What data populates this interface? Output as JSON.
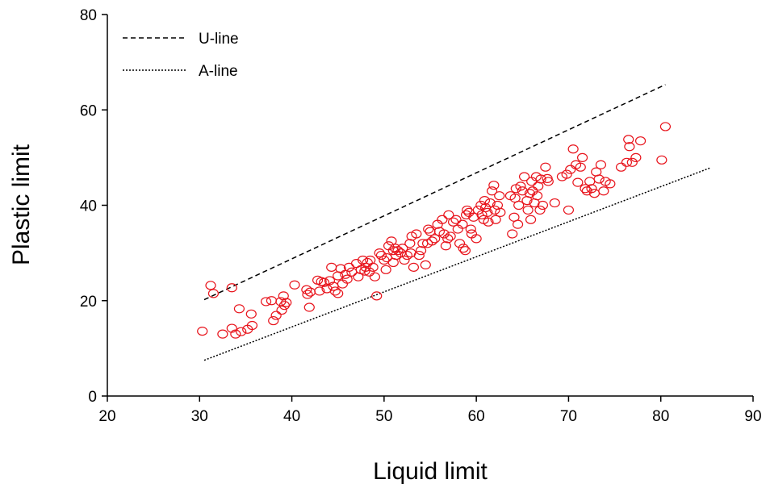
{
  "chart_data": {
    "type": "scatter",
    "xlabel": "Liquid limit",
    "ylabel": "Plastic limit",
    "xlim": [
      20,
      90
    ],
    "ylim": [
      0,
      80
    ],
    "xticks": [
      "20",
      "30",
      "40",
      "50",
      "60",
      "70",
      "80",
      "90"
    ],
    "yticks": [
      "0",
      "20",
      "40",
      "60",
      "80"
    ],
    "grid": false,
    "legend_position": "top-left",
    "lines": [
      {
        "name": "U-line",
        "style": "dashed",
        "x": [
          30.5,
          80.5
        ],
        "y": [
          20.2,
          65.3
        ],
        "color": "#000000"
      },
      {
        "name": "A-line",
        "style": "dotted",
        "x": [
          30.5,
          85.3
        ],
        "y": [
          7.5,
          47.8
        ],
        "color": "#000000"
      }
    ],
    "series": [
      {
        "marker": "open-circle",
        "color": "#e8141c",
        "points": [
          [
            30.3,
            13.6
          ],
          [
            31.2,
            23.2
          ],
          [
            31.5,
            21.5
          ],
          [
            32.5,
            13.0
          ],
          [
            33.5,
            22.7
          ],
          [
            33.5,
            14.2
          ],
          [
            33.9,
            13.0
          ],
          [
            34.3,
            18.3
          ],
          [
            34.5,
            13.5
          ],
          [
            35.2,
            14.0
          ],
          [
            35.6,
            17.2
          ],
          [
            35.7,
            14.8
          ],
          [
            37.2,
            19.8
          ],
          [
            38.0,
            15.8
          ],
          [
            38.3,
            16.9
          ],
          [
            38.8,
            19.8
          ],
          [
            38.9,
            18.0
          ],
          [
            39.1,
            21.0
          ],
          [
            39.2,
            19.0
          ],
          [
            39.4,
            19.6
          ],
          [
            40.3,
            23.3
          ],
          [
            41.6,
            22.3
          ],
          [
            41.7,
            21.3
          ],
          [
            41.9,
            18.6
          ],
          [
            42.8,
            24.3
          ],
          [
            43.0,
            22.0
          ],
          [
            43.2,
            24.0
          ],
          [
            43.5,
            23.8
          ],
          [
            43.8,
            22.5
          ],
          [
            44.1,
            24.2
          ],
          [
            44.3,
            27.0
          ],
          [
            44.5,
            23.0
          ],
          [
            44.7,
            22.0
          ],
          [
            45.0,
            25.2
          ],
          [
            45.0,
            21.5
          ],
          [
            45.3,
            26.7
          ],
          [
            45.5,
            23.5
          ],
          [
            45.8,
            25.5
          ],
          [
            46.2,
            27.0
          ],
          [
            46.5,
            26.0
          ],
          [
            47.0,
            27.8
          ],
          [
            47.2,
            25.0
          ],
          [
            47.5,
            26.5
          ],
          [
            47.7,
            28.5
          ],
          [
            47.9,
            26.2
          ],
          [
            48.0,
            27.0
          ],
          [
            48.2,
            28.0
          ],
          [
            48.4,
            26.0
          ],
          [
            48.5,
            28.5
          ],
          [
            48.8,
            27.0
          ],
          [
            49.0,
            25.0
          ],
          [
            49.2,
            21.0
          ],
          [
            49.5,
            30.0
          ],
          [
            49.7,
            29.5
          ],
          [
            50.0,
            28.5
          ],
          [
            50.3,
            29.0
          ],
          [
            50.5,
            31.5
          ],
          [
            50.8,
            32.5
          ],
          [
            51.0,
            30.5
          ],
          [
            51.0,
            28.0
          ],
          [
            51.2,
            31.0
          ],
          [
            51.3,
            29.5
          ],
          [
            51.5,
            30.5
          ],
          [
            51.8,
            30.0
          ],
          [
            52.0,
            31.0
          ],
          [
            52.2,
            28.5
          ],
          [
            52.5,
            29.5
          ],
          [
            52.8,
            32.0
          ],
          [
            53.0,
            33.5
          ],
          [
            53.2,
            27.0
          ],
          [
            53.5,
            34.0
          ],
          [
            53.8,
            29.5
          ],
          [
            54.0,
            30.5
          ],
          [
            54.2,
            32.0
          ],
          [
            54.5,
            27.5
          ],
          [
            54.7,
            32.0
          ],
          [
            54.8,
            35.0
          ],
          [
            55.0,
            34.5
          ],
          [
            55.2,
            32.5
          ],
          [
            55.5,
            33.0
          ],
          [
            55.8,
            36.0
          ],
          [
            56.0,
            34.5
          ],
          [
            56.3,
            37.0
          ],
          [
            56.5,
            34.0
          ],
          [
            56.7,
            31.5
          ],
          [
            57.0,
            38.0
          ],
          [
            57.2,
            33.5
          ],
          [
            57.5,
            36.5
          ],
          [
            57.8,
            37.0
          ],
          [
            58.0,
            35.0
          ],
          [
            58.2,
            32.0
          ],
          [
            58.5,
            36.0
          ],
          [
            58.6,
            31.0
          ],
          [
            58.8,
            30.5
          ],
          [
            58.9,
            38.0
          ],
          [
            59.0,
            39.0
          ],
          [
            59.2,
            38.5
          ],
          [
            59.4,
            35.0
          ],
          [
            59.5,
            34.0
          ],
          [
            59.7,
            37.5
          ],
          [
            60.0,
            33.0
          ],
          [
            60.2,
            39.0
          ],
          [
            60.5,
            40.0
          ],
          [
            60.6,
            38.0
          ],
          [
            60.8,
            37.0
          ],
          [
            61.0,
            39.5
          ],
          [
            61.2,
            38.5
          ],
          [
            61.3,
            36.5
          ],
          [
            61.5,
            40.5
          ],
          [
            61.7,
            43.0
          ],
          [
            61.9,
            44.2
          ],
          [
            62.0,
            39.0
          ],
          [
            62.1,
            37.0
          ],
          [
            62.3,
            40.0
          ],
          [
            62.5,
            42.0
          ],
          [
            62.6,
            38.5
          ],
          [
            63.9,
            34.0
          ],
          [
            64.1,
            37.5
          ],
          [
            64.2,
            41.5
          ],
          [
            64.3,
            43.5
          ],
          [
            64.5,
            36.0
          ],
          [
            64.6,
            40.0
          ],
          [
            64.8,
            44.0
          ],
          [
            65.0,
            43.0
          ],
          [
            65.2,
            46.0
          ],
          [
            65.5,
            41.0
          ],
          [
            65.6,
            39.0
          ],
          [
            65.8,
            42.5
          ],
          [
            66.0,
            45.0
          ],
          [
            66.1,
            43.0
          ],
          [
            66.3,
            40.5
          ],
          [
            66.5,
            46.0
          ],
          [
            66.6,
            42.0
          ],
          [
            66.7,
            44.0
          ],
          [
            66.9,
            39.0
          ],
          [
            67.0,
            45.5
          ],
          [
            67.2,
            40.0
          ],
          [
            67.5,
            48.0
          ],
          [
            67.8,
            45.0
          ],
          [
            68.5,
            40.5
          ],
          [
            69.3,
            46.0
          ],
          [
            69.8,
            46.5
          ],
          [
            70.0,
            39.0
          ],
          [
            70.2,
            47.5
          ],
          [
            70.5,
            51.8
          ],
          [
            70.8,
            48.5
          ],
          [
            71.0,
            44.8
          ],
          [
            71.3,
            48.0
          ],
          [
            71.5,
            50.0
          ],
          [
            71.8,
            43.5
          ],
          [
            72.0,
            43.0
          ],
          [
            72.3,
            45.0
          ],
          [
            72.5,
            43.5
          ],
          [
            72.8,
            42.5
          ],
          [
            73.0,
            47.0
          ],
          [
            73.3,
            45.5
          ],
          [
            73.5,
            48.5
          ],
          [
            73.8,
            43.0
          ],
          [
            74.0,
            45.0
          ],
          [
            74.5,
            44.5
          ],
          [
            75.7,
            48.0
          ],
          [
            76.3,
            49.0
          ],
          [
            76.5,
            53.8
          ],
          [
            76.6,
            52.3
          ],
          [
            76.9,
            49.0
          ],
          [
            77.3,
            50.0
          ],
          [
            77.8,
            53.5
          ],
          [
            80.1,
            49.5
          ],
          [
            80.5,
            56.5
          ],
          [
            37.8,
            20.0
          ],
          [
            42.0,
            21.8
          ],
          [
            46.0,
            24.5
          ],
          [
            50.2,
            26.5
          ],
          [
            52.9,
            30.0
          ],
          [
            56.9,
            33.0
          ],
          [
            60.9,
            41.0
          ],
          [
            63.7,
            42.0
          ],
          [
            65.9,
            37.0
          ],
          [
            67.7,
            45.6
          ]
        ]
      }
    ]
  }
}
